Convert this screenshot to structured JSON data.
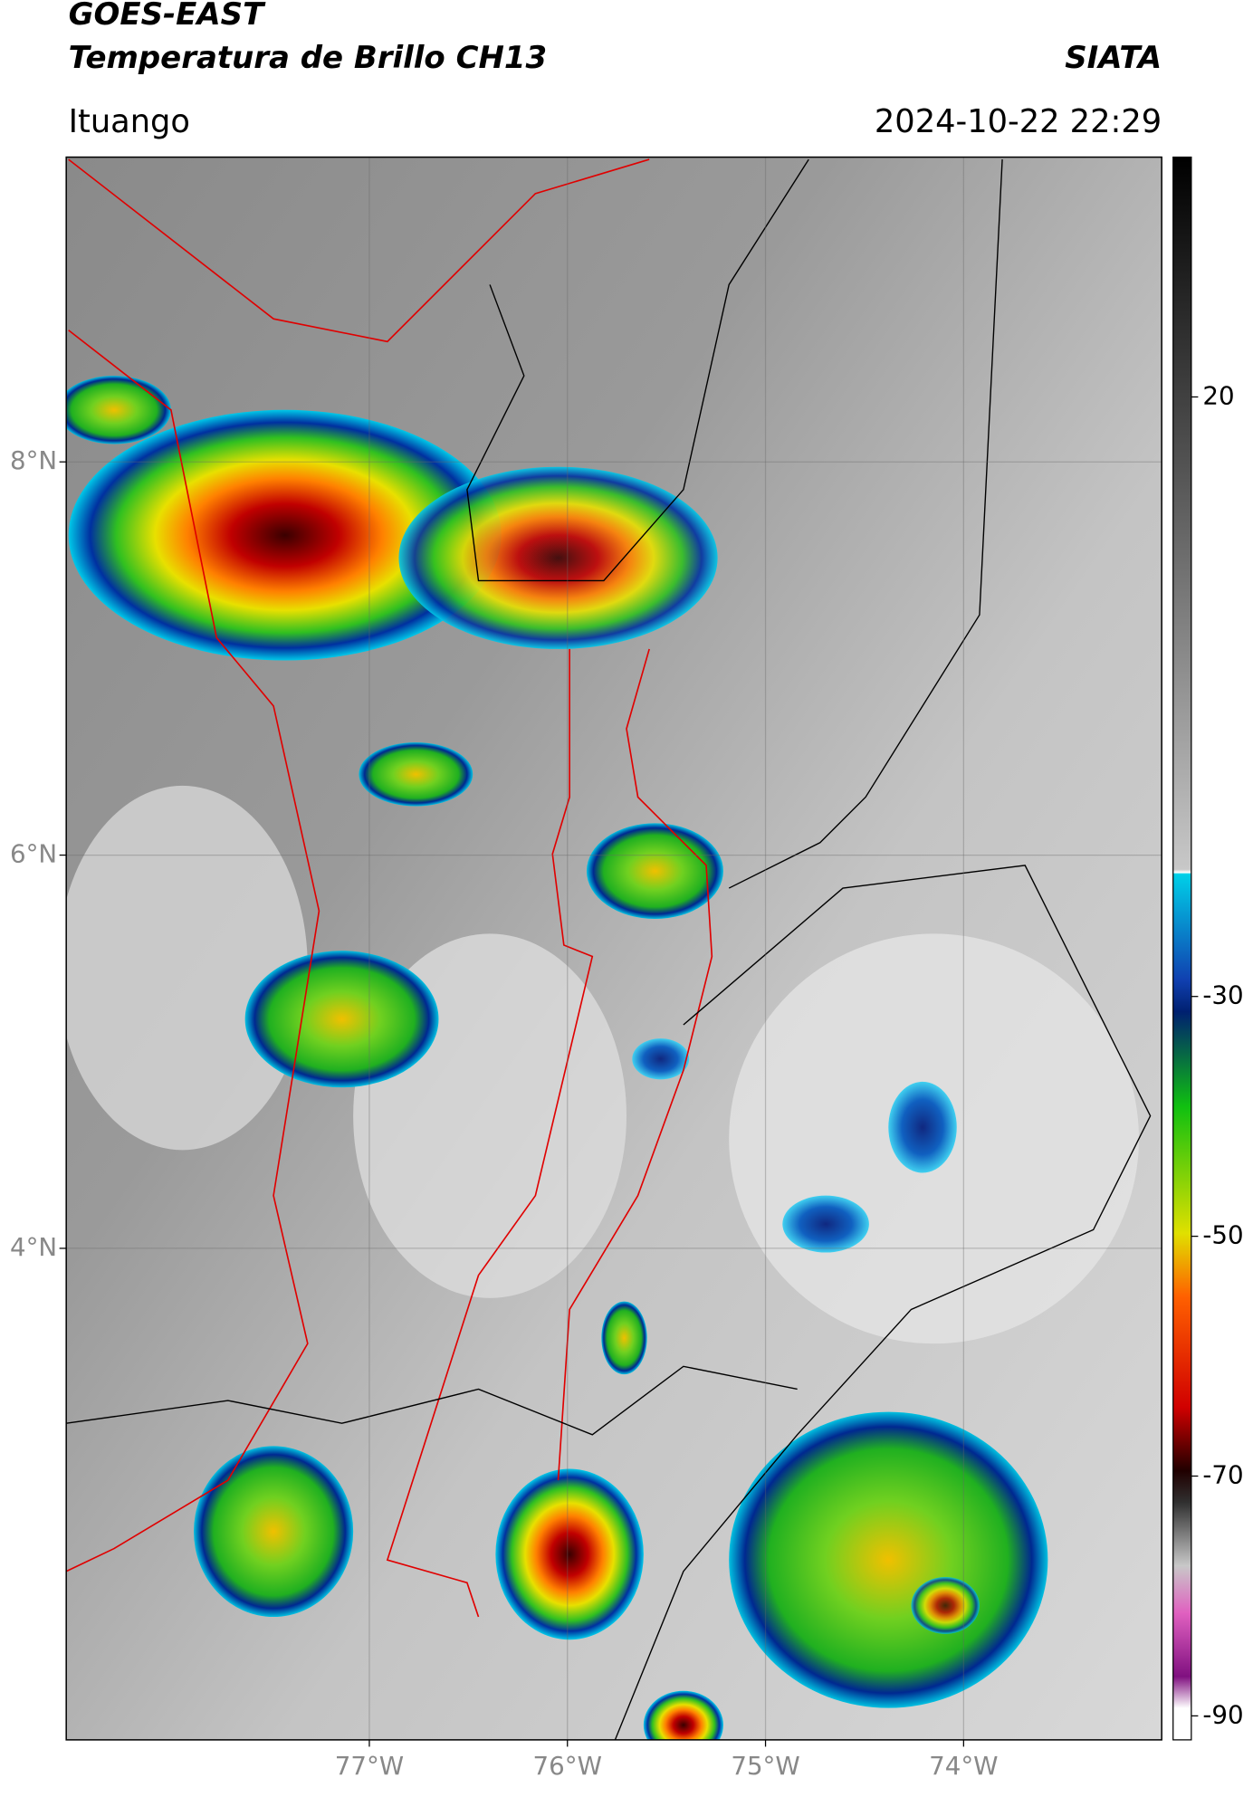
{
  "header": {
    "title": "GOES-EAST",
    "subtitle": "Temperatura de Brillo CH13",
    "source": "SIATA",
    "location": "Ituango",
    "datetime": "2024-10-22 22:29"
  },
  "map": {
    "xlim": [
      -78.53,
      -73.0
    ],
    "ylim": [
      1.5,
      9.55
    ],
    "xticks": [
      {
        "value": -77,
        "label": "77°W"
      },
      {
        "value": -76,
        "label": "76°W"
      },
      {
        "value": -75,
        "label": "75°W"
      },
      {
        "value": -74,
        "label": "74°W"
      }
    ],
    "yticks": [
      {
        "value": 8,
        "label": "8°N"
      },
      {
        "value": 6,
        "label": "6°N"
      },
      {
        "value": 4,
        "label": "4°N"
      }
    ],
    "grid": true
  },
  "colorbar": {
    "lim": [
      -92,
      40
    ],
    "ticks": [
      20,
      -30,
      -50,
      -70,
      -90
    ]
  }
}
